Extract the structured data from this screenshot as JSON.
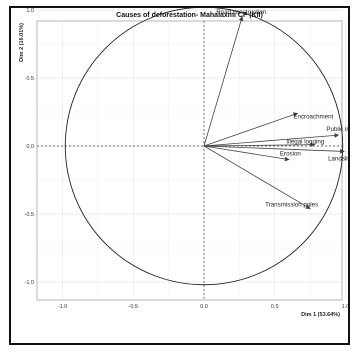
{
  "chart_data": {
    "type": "scatter",
    "title": "Causes of deforestation- Mahalaxmi CF (KII)",
    "xlabel": "Dim 1 (53.64%)",
    "ylabel": "Dim 2 (16.01%)",
    "xlim": [
      -1.1,
      1.1
    ],
    "ylim": [
      -1.1,
      1.1
    ],
    "x_ticks": [
      "-1.0",
      "-0.5",
      "0.0",
      "0.5",
      "1.0"
    ],
    "y_ticks": [
      "-1.0",
      "-0.5",
      "0.0",
      "0.5",
      "1.0"
    ],
    "grid": true,
    "correlation_circle": true,
    "vectors": [
      {
        "name": "Road construction",
        "x": 0.27,
        "y": 0.95
      },
      {
        "name": "Encroachment",
        "x": 0.66,
        "y": 0.24
      },
      {
        "name": "Public institution",
        "x": 0.95,
        "y": 0.08
      },
      {
        "name": "Illegal logging",
        "x": 0.78,
        "y": 0.01
      },
      {
        "name": "Landslide",
        "x": 0.99,
        "y": -0.04
      },
      {
        "name": "Erosion",
        "x": 0.6,
        "y": -0.1
      },
      {
        "name": "Transmission poles",
        "x": 0.75,
        "y": -0.46
      }
    ]
  }
}
